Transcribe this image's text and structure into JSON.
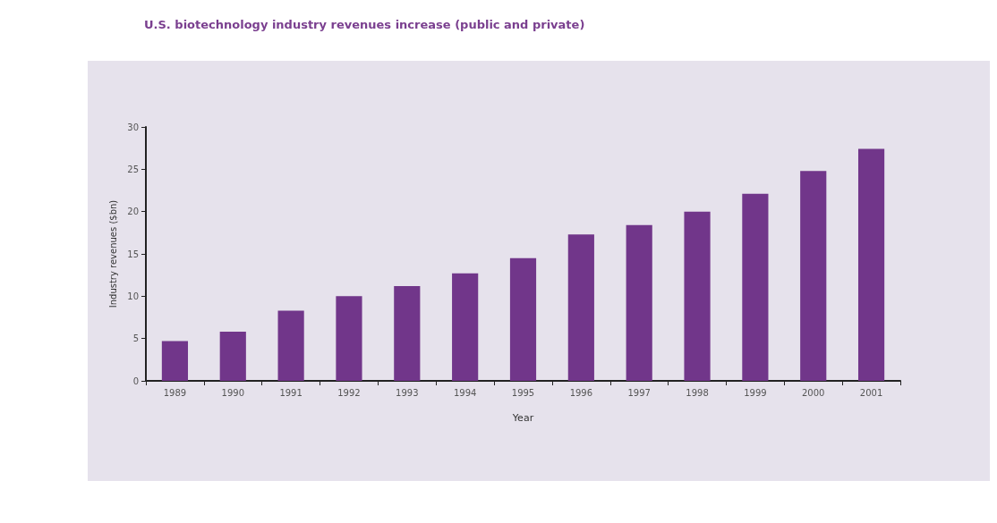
{
  "chart_data": {
    "type": "bar",
    "title": "U.S. biotechnology industry revenues increase (public and private)",
    "xlabel": "Year",
    "ylabel": "Industry revenues ($bn)",
    "categories": [
      "1989",
      "1990",
      "1991",
      "1992",
      "1993",
      "1994",
      "1995",
      "1996",
      "1997",
      "1998",
      "1999",
      "2000",
      "2001"
    ],
    "values": [
      4.7,
      5.8,
      8.3,
      10.0,
      11.2,
      12.7,
      14.5,
      17.3,
      18.4,
      20.0,
      22.1,
      24.8,
      27.4
    ],
    "color": "#71368a",
    "ylim": [
      0,
      30
    ],
    "yticks": [
      0,
      5,
      10,
      15,
      20,
      25,
      30
    ],
    "grid": false
  }
}
